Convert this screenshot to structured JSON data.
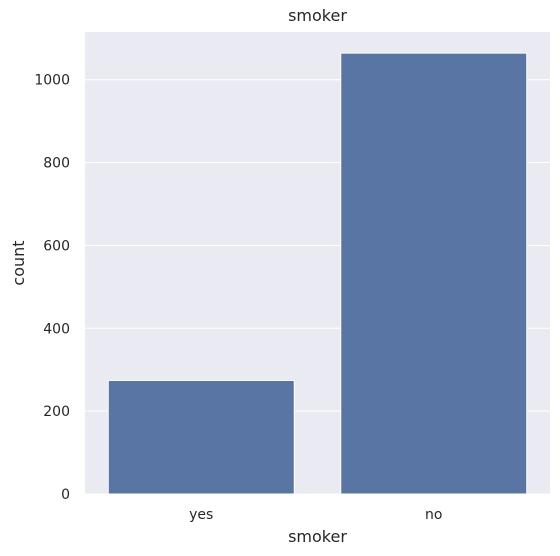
{
  "chart_data": {
    "type": "bar",
    "title": "smoker",
    "xlabel": "smoker",
    "ylabel": "count",
    "categories": [
      "yes",
      "no"
    ],
    "values": [
      274,
      1064
    ],
    "ylim": [
      0,
      1115
    ],
    "yticks": [
      0,
      200,
      400,
      600,
      800,
      1000
    ],
    "grid": true,
    "bar_color": "#5975a4",
    "background_color": "#eaeaf2"
  }
}
